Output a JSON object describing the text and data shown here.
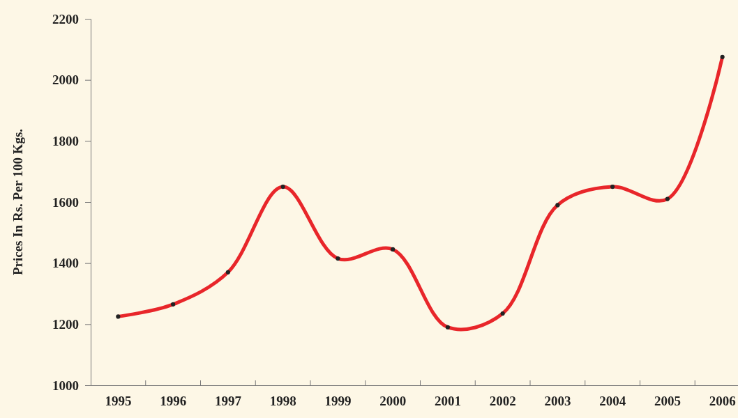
{
  "chart_data": {
    "type": "line",
    "ylabel": "Prices In Rs. Per 100 Kgs.",
    "categories": [
      "1995",
      "1996",
      "1997",
      "1998",
      "1999",
      "2000",
      "2001",
      "2002",
      "2003",
      "2004",
      "2005",
      "2006"
    ],
    "series": [
      {
        "color": "#e8262a",
        "values": [
          1225,
          1265,
          1370,
          1650,
          1415,
          1445,
          1190,
          1235,
          1590,
          1650,
          1610,
          2075
        ]
      }
    ],
    "ylim": [
      1000,
      2200
    ],
    "yticks": [
      1000,
      1200,
      1400,
      1600,
      1800,
      2000,
      2200
    ],
    "grid": false,
    "marker": "circle",
    "line_style": "solid"
  }
}
